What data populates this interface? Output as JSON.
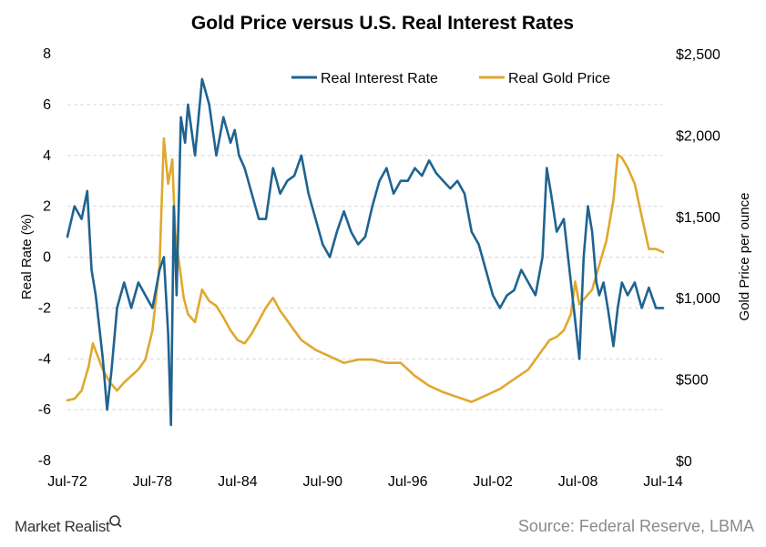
{
  "chart_data": {
    "type": "line",
    "title": "Gold Price versus U.S. Real Interest Rates",
    "ylabel": "Real Rate (%)",
    "y2label": "Gold Price  per ounce",
    "xlim": [
      1972.5,
      2014.5
    ],
    "ylim": [
      -8,
      8
    ],
    "y2lim": [
      0,
      2500
    ],
    "x_ticks": [
      "Jul-72",
      "Jul-78",
      "Jul-84",
      "Jul-90",
      "Jul-96",
      "Jul-02",
      "Jul-08",
      "Jul-14"
    ],
    "y_ticks": [
      "8",
      "6",
      "4",
      "2",
      "0",
      "-2",
      "-4",
      "-6",
      "-8"
    ],
    "y2_ticks": [
      "$2,500",
      "$2,000",
      "$1,500",
      "$1,000",
      "$500",
      "$0"
    ],
    "grid": true,
    "legend_position": "top-right",
    "series": [
      {
        "name": "Real Interest Rate",
        "axis": "left",
        "color": "#1f6391",
        "x": [
          1972.5,
          1973.0,
          1973.5,
          1973.9,
          1974.2,
          1974.5,
          1974.8,
          1975.0,
          1975.3,
          1975.6,
          1976.0,
          1976.5,
          1977.0,
          1977.5,
          1978.0,
          1978.5,
          1979.0,
          1979.3,
          1979.6,
          1979.8,
          1980.0,
          1980.2,
          1980.5,
          1980.8,
          1981.0,
          1981.5,
          1982.0,
          1982.5,
          1983.0,
          1983.5,
          1984.0,
          1984.3,
          1984.6,
          1985.0,
          1985.5,
          1986.0,
          1986.5,
          1987.0,
          1987.5,
          1988.0,
          1988.5,
          1989.0,
          1989.5,
          1990.0,
          1990.5,
          1991.0,
          1991.5,
          1992.0,
          1992.5,
          1993.0,
          1993.5,
          1994.0,
          1994.5,
          1995.0,
          1995.5,
          1996.0,
          1996.5,
          1997.0,
          1997.5,
          1998.0,
          1998.5,
          1999.0,
          1999.5,
          2000.0,
          2000.5,
          2001.0,
          2001.5,
          2002.0,
          2002.5,
          2003.0,
          2003.5,
          2004.0,
          2004.5,
          2005.0,
          2005.5,
          2006.0,
          2006.3,
          2006.6,
          2007.0,
          2007.5,
          2008.0,
          2008.3,
          2008.6,
          2008.9,
          2009.2,
          2009.5,
          2009.8,
          2010.0,
          2010.3,
          2010.6,
          2011.0,
          2011.3,
          2011.6,
          2012.0,
          2012.5,
          2013.0,
          2013.5,
          2014.0,
          2014.5
        ],
        "values": [
          0.8,
          2.0,
          1.5,
          2.6,
          -0.5,
          -1.5,
          -3.0,
          -4.0,
          -6.0,
          -4.5,
          -2.0,
          -1.0,
          -2.0,
          -1.0,
          -1.5,
          -2.0,
          -0.5,
          0.0,
          -3.0,
          -6.6,
          2.0,
          -1.5,
          5.5,
          4.5,
          6.0,
          4.0,
          7.0,
          6.0,
          4.0,
          5.5,
          4.5,
          5.0,
          4.0,
          3.5,
          2.5,
          1.5,
          1.5,
          3.5,
          2.5,
          3.0,
          3.2,
          4.0,
          2.5,
          1.5,
          0.5,
          0.0,
          1.0,
          1.8,
          1.0,
          0.5,
          0.8,
          2.0,
          3.0,
          3.5,
          2.5,
          3.0,
          3.0,
          3.5,
          3.2,
          3.8,
          3.3,
          3.0,
          2.7,
          3.0,
          2.5,
          1.0,
          0.5,
          -0.5,
          -1.5,
          -2.0,
          -1.5,
          -1.3,
          -0.5,
          -1.0,
          -1.5,
          0.0,
          3.5,
          2.5,
          1.0,
          1.5,
          -1.0,
          -2.5,
          -4.0,
          0.0,
          2.0,
          1.0,
          -1.0,
          -1.5,
          -1.0,
          -2.0,
          -3.5,
          -2.0,
          -1.0,
          -1.5,
          -1.0,
          -2.0,
          -1.2,
          -2.0,
          -2.0
        ]
      },
      {
        "name": "Real Gold Price",
        "axis": "right",
        "color": "#e0a82e",
        "x": [
          1972.5,
          1973.0,
          1973.5,
          1974.0,
          1974.3,
          1974.6,
          1975.0,
          1975.5,
          1976.0,
          1976.5,
          1977.0,
          1977.5,
          1978.0,
          1978.5,
          1979.0,
          1979.3,
          1979.6,
          1979.9,
          1980.1,
          1980.4,
          1980.7,
          1981.0,
          1981.5,
          1982.0,
          1982.5,
          1983.0,
          1983.5,
          1984.0,
          1984.5,
          1985.0,
          1985.5,
          1986.0,
          1986.5,
          1987.0,
          1987.5,
          1988.0,
          1988.5,
          1989.0,
          1990.0,
          1991.0,
          1992.0,
          1993.0,
          1994.0,
          1995.0,
          1996.0,
          1997.0,
          1998.0,
          1999.0,
          2000.0,
          2001.0,
          2002.0,
          2003.0,
          2004.0,
          2005.0,
          2006.0,
          2006.5,
          2007.0,
          2007.5,
          2008.0,
          2008.3,
          2008.6,
          2009.0,
          2009.5,
          2010.0,
          2010.5,
          2011.0,
          2011.3,
          2011.6,
          2012.0,
          2012.5,
          2013.0,
          2013.5,
          2014.0,
          2014.5
        ],
        "values": [
          370,
          380,
          430,
          580,
          720,
          650,
          560,
          480,
          430,
          480,
          520,
          560,
          620,
          800,
          1200,
          1980,
          1700,
          1850,
          1400,
          1200,
          1000,
          900,
          850,
          1050,
          980,
          950,
          880,
          800,
          740,
          720,
          780,
          860,
          940,
          1000,
          920,
          860,
          800,
          740,
          680,
          640,
          600,
          620,
          620,
          600,
          600,
          520,
          460,
          420,
          390,
          360,
          400,
          440,
          500,
          560,
          680,
          740,
          760,
          800,
          900,
          1100,
          960,
          1000,
          1050,
          1200,
          1350,
          1600,
          1880,
          1860,
          1800,
          1700,
          1500,
          1300,
          1300,
          1280
        ]
      }
    ]
  },
  "footer": {
    "source": "Source: Federal Reserve, LBMA",
    "brand": "Market Realist"
  }
}
